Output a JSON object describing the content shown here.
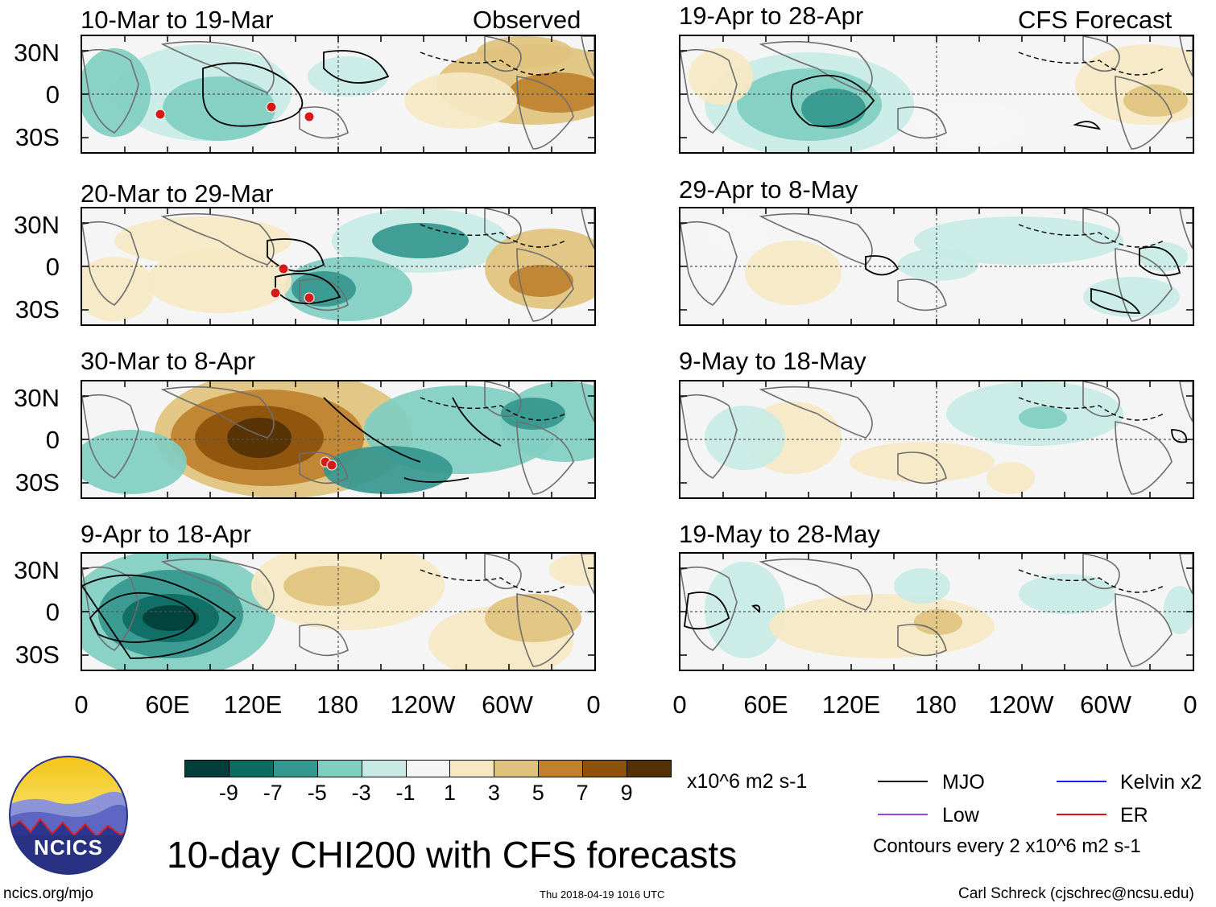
{
  "header": {
    "observed_label": "Observed",
    "forecast_label": "CFS Forecast"
  },
  "axis": {
    "lat_ticks": [
      "30N",
      "0",
      "30S"
    ],
    "lon_ticks": [
      "0",
      "60E",
      "120E",
      "180",
      "120W",
      "60W",
      "0"
    ]
  },
  "chart_data": {
    "type": "heatmap",
    "title": "10-day CHI200 with CFS forecasts",
    "variable": "CHI200 anomaly",
    "units": "x10^6 m2 s-1",
    "contour_note": "Contours every 2 x10^6 m2 s-1",
    "lon_range": [
      0,
      360
    ],
    "lat_range": [
      -40,
      40
    ],
    "colorbar": {
      "ticks": [
        "-9",
        "-7",
        "-5",
        "-3",
        "-1",
        "1",
        "3",
        "5",
        "7",
        "9"
      ],
      "colors": [
        "#01403a",
        "#0d6b62",
        "#35978f",
        "#80cdc1",
        "#c7eae5",
        "#f5f5f5",
        "#f6e8c3",
        "#dfc27d",
        "#bf812d",
        "#8c510a",
        "#543005"
      ]
    },
    "panels": [
      {
        "id": "obs1",
        "label": "10-Mar to 19-Mar",
        "kind": "observed"
      },
      {
        "id": "obs2",
        "label": "20-Mar to 29-Mar",
        "kind": "observed"
      },
      {
        "id": "obs3",
        "label": "30-Mar to 8-Apr",
        "kind": "observed"
      },
      {
        "id": "obs4",
        "label": "9-Apr to 18-Apr",
        "kind": "observed"
      },
      {
        "id": "fc1",
        "label": "19-Apr to 28-Apr",
        "kind": "forecast"
      },
      {
        "id": "fc2",
        "label": "29-Apr to 8-May",
        "kind": "forecast"
      },
      {
        "id": "fc3",
        "label": "9-May to 18-May",
        "kind": "forecast"
      },
      {
        "id": "fc4",
        "label": "19-May to 28-May",
        "kind": "forecast"
      }
    ],
    "legend": [
      {
        "label": "MJO",
        "color": "#000000"
      },
      {
        "label": "Kelvin x2",
        "color": "#1a1aff"
      },
      {
        "label": "Low",
        "color": "#a040e0"
      },
      {
        "label": "ER",
        "color": "#e01010"
      }
    ]
  },
  "footer": {
    "logo_text": "NCICS",
    "url": "ncics.org/mjo",
    "timestamp": "Thu 2018-04-19 1016 UTC",
    "author": "Carl Schreck (cjschrec@ncsu.edu)"
  }
}
